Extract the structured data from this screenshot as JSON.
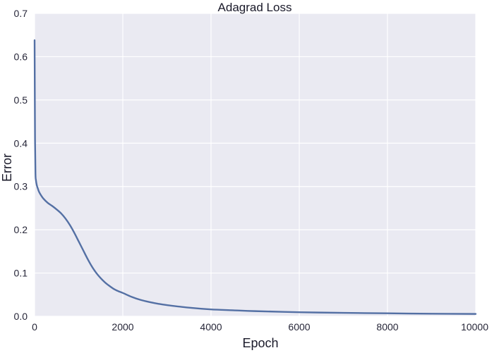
{
  "chart_data": {
    "type": "line",
    "title": "Adagrad Loss",
    "xlabel": "Epoch",
    "ylabel": "Error",
    "xlim": [
      0,
      10000
    ],
    "ylim": [
      0.0,
      0.7
    ],
    "x_ticks": [
      0,
      2000,
      4000,
      6000,
      8000,
      10000
    ],
    "x_tick_labels": [
      "0",
      "2000",
      "4000",
      "6000",
      "8000",
      "10000"
    ],
    "y_ticks": [
      0.0,
      0.1,
      0.2,
      0.3,
      0.4,
      0.5,
      0.6,
      0.7
    ],
    "y_tick_labels": [
      "0.0",
      "0.1",
      "0.2",
      "0.3",
      "0.4",
      "0.5",
      "0.6",
      "0.7"
    ],
    "grid": true,
    "series": [
      {
        "color": "#5470a4",
        "x": [
          0,
          5,
          10,
          20,
          30,
          50,
          75,
          100,
          150,
          200,
          300,
          400,
          500,
          600,
          700,
          800,
          900,
          1000,
          1100,
          1200,
          1300,
          1400,
          1500,
          1600,
          1700,
          1800,
          1900,
          2000,
          2200,
          2400,
          2600,
          2800,
          3000,
          3500,
          4000,
          4500,
          5000,
          6000,
          7000,
          8000,
          9000,
          10000
        ],
        "y": [
          0.638,
          0.52,
          0.41,
          0.33,
          0.315,
          0.303,
          0.295,
          0.288,
          0.279,
          0.272,
          0.262,
          0.255,
          0.247,
          0.238,
          0.226,
          0.211,
          0.193,
          0.173,
          0.153,
          0.133,
          0.115,
          0.1,
          0.088,
          0.078,
          0.07,
          0.063,
          0.058,
          0.054,
          0.045,
          0.038,
          0.033,
          0.029,
          0.026,
          0.02,
          0.016,
          0.014,
          0.012,
          0.0095,
          0.008,
          0.007,
          0.006,
          0.0055
        ]
      }
    ],
    "colors": {
      "plot_background": "#eaeaf2",
      "grid": "#ffffff",
      "line": "#5470a4",
      "text": "#262638"
    }
  }
}
